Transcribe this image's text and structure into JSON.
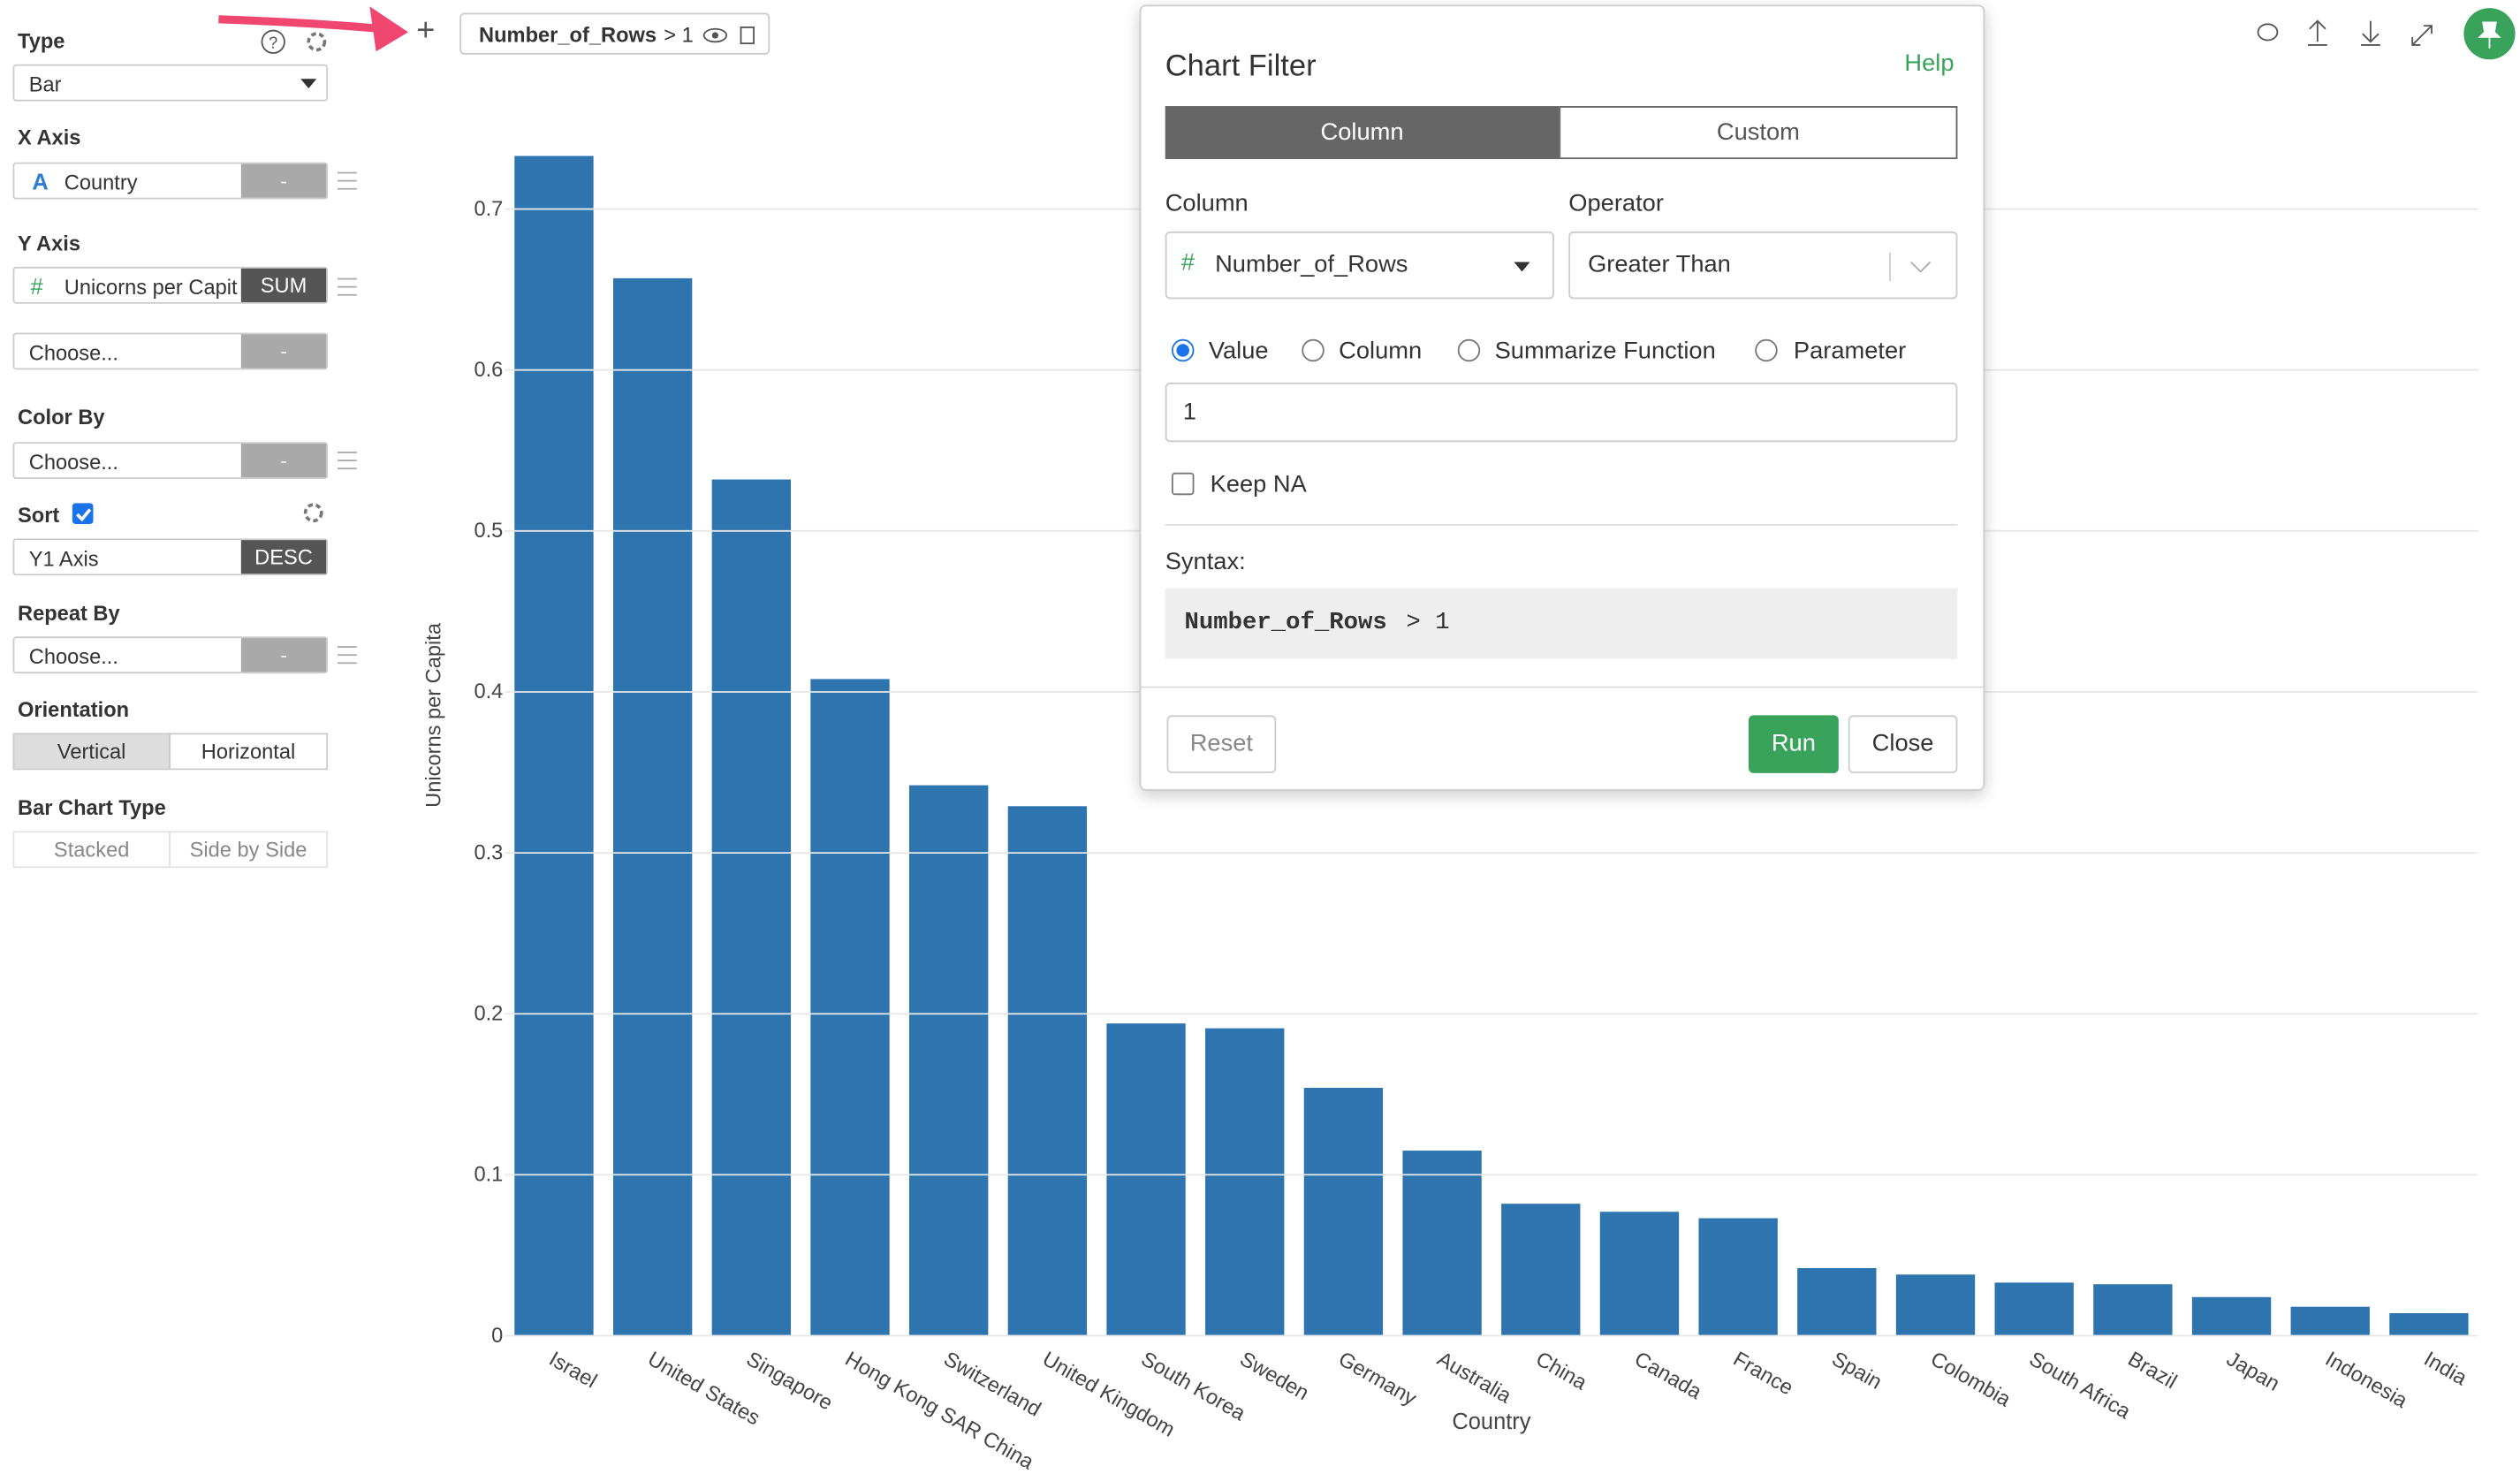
{
  "sidebar": {
    "type": {
      "label": "Type",
      "value": "Bar"
    },
    "x_axis": {
      "label": "X Axis",
      "icon": "A",
      "field": "Country",
      "button": "-"
    },
    "y_axis": {
      "label": "Y Axis",
      "icon": "#",
      "field": "Unicorns per Capit",
      "button": "SUM",
      "extra_field": "Choose...",
      "extra_button": "-"
    },
    "color_by": {
      "label": "Color By",
      "field": "Choose...",
      "button": "-"
    },
    "sort": {
      "label": "Sort",
      "field": "Y1 Axis",
      "button": "DESC"
    },
    "repeat_by": {
      "label": "Repeat By",
      "field": "Choose...",
      "button": "-"
    },
    "orientation": {
      "label": "Orientation",
      "options": [
        "Vertical",
        "Horizontal"
      ]
    },
    "bar_chart_type": {
      "label": "Bar Chart Type",
      "options": [
        "Stacked",
        "Side by Side"
      ]
    }
  },
  "toolbar": {
    "add": "+",
    "filter_column": "Number_of_Rows",
    "filter_condition": "> 1"
  },
  "dialog": {
    "title": "Chart Filter",
    "help": "Help",
    "tabs": [
      "Column",
      "Custom"
    ],
    "column_label": "Column",
    "operator_label": "Operator",
    "column_icon": "#",
    "column_value": "Number_of_Rows",
    "operator_value": "Greater Than",
    "radios": [
      "Value",
      "Column",
      "Summarize Function",
      "Parameter"
    ],
    "value": "1",
    "keep_na": "Keep NA",
    "syntax_label": "Syntax:",
    "syntax_column": "Number_of_Rows",
    "syntax_rest": "> 1",
    "buttons": {
      "reset": "Reset",
      "run": "Run",
      "close": "Close"
    }
  },
  "chart_data": {
    "type": "bar",
    "x_label": "Country",
    "y_label": "Unicorns per Capita",
    "color": "#2e75b0",
    "grid": true,
    "categories": [
      "Israel",
      "United States",
      "Singapore",
      "Hong Kong SAR China",
      "Switzerland",
      "United Kingdom",
      "South Korea",
      "Sweden",
      "Germany",
      "Australia",
      "China",
      "Canada",
      "France",
      "Spain",
      "Colombia",
      "South Africa",
      "Brazil",
      "Japan",
      "Indonesia",
      "India"
    ],
    "values": [
      0.733,
      0.657,
      0.532,
      0.408,
      0.342,
      0.329,
      0.194,
      0.191,
      0.154,
      0.115,
      0.082,
      0.077,
      0.073,
      0.042,
      0.038,
      0.033,
      0.032,
      0.024,
      0.018,
      0.014
    ],
    "ylim": [
      0,
      0.75
    ],
    "yticks": [
      0,
      0.1,
      0.2,
      0.3,
      0.4,
      0.5,
      0.6,
      0.7
    ]
  }
}
